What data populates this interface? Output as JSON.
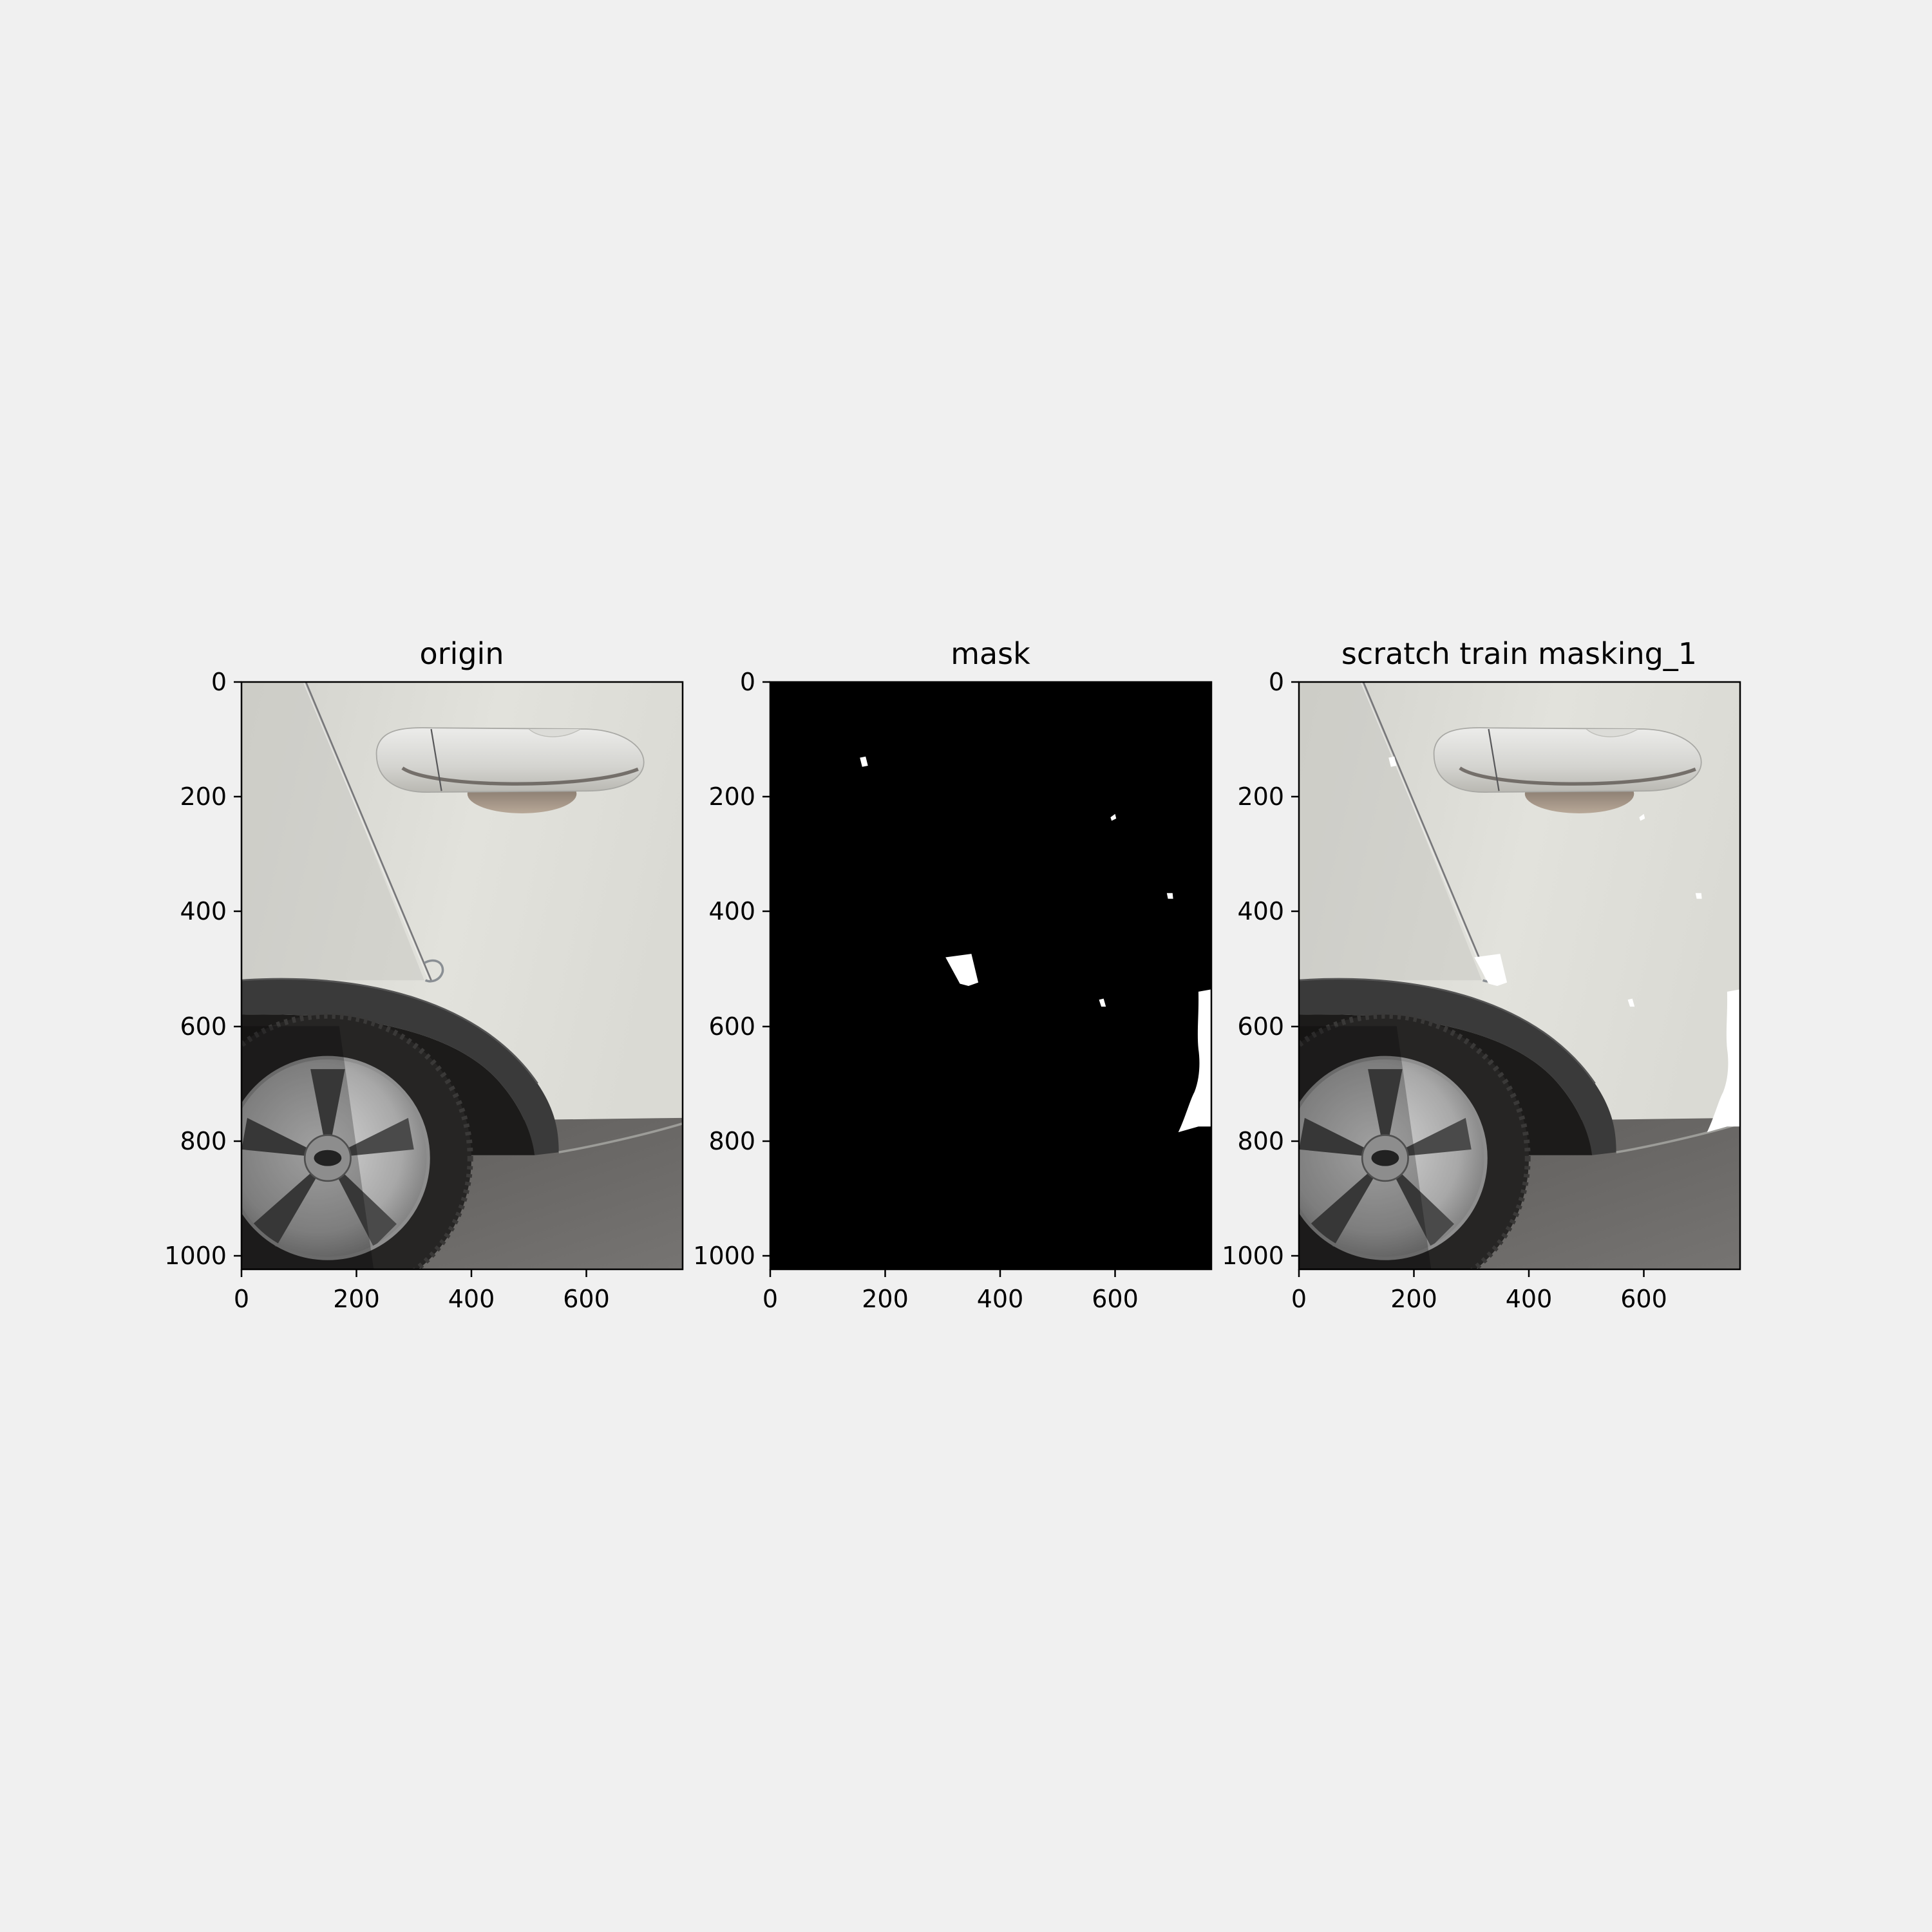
{
  "panels": [
    {
      "id": "origin",
      "title": "origin",
      "x_ticks": [
        "0",
        "200",
        "400",
        "600"
      ],
      "y_ticks": [
        "0",
        "200",
        "400",
        "600",
        "800",
        "1000"
      ]
    },
    {
      "id": "mask",
      "title": "mask",
      "x_ticks": [
        "0",
        "200",
        "400",
        "600"
      ],
      "y_ticks": [
        "0",
        "200",
        "400",
        "600",
        "800",
        "1000"
      ]
    },
    {
      "id": "overlay",
      "title": "scratch train masking_1",
      "x_ticks": [
        "0",
        "200",
        "400",
        "600"
      ],
      "y_ticks": [
        "0",
        "200",
        "400",
        "600",
        "800",
        "1000"
      ]
    }
  ],
  "colors": {
    "figure_background": "#f0f0f0",
    "car_body": "#dcdcd6",
    "tire": "#2a2a2a",
    "road": "#6a6a6a",
    "mask_background": "#000000",
    "mask_region": "#ffffff"
  }
}
